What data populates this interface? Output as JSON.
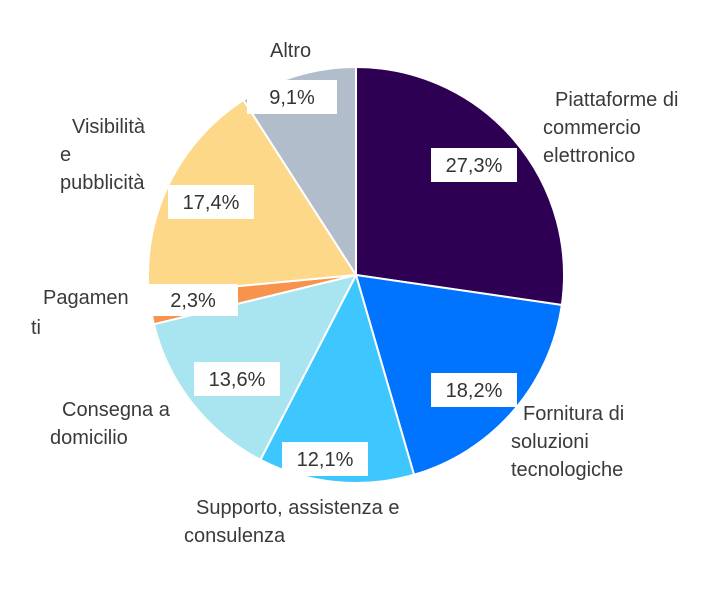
{
  "chart_data": {
    "type": "pie",
    "start_angle_deg": 0,
    "direction": "clockwise",
    "slices": [
      {
        "label": "Piattaforme di commercio elettronico",
        "label_lines": [
          "Piattaforme di",
          "commercio",
          "elettronico"
        ],
        "value": 27.3,
        "value_label": "27,3%",
        "color": "#2d0054"
      },
      {
        "label": "Fornitura di soluzioni tecnologiche",
        "label_lines": [
          "Fornitura di",
          "soluzioni",
          "tecnologiche"
        ],
        "value": 18.2,
        "value_label": "18,2%",
        "color": "#0074ff"
      },
      {
        "label": "Supporto, assistenza e consulenza",
        "label_lines": [
          "Supporto, assistenza e",
          "consulenza"
        ],
        "value": 12.1,
        "value_label": "12,1%",
        "color": "#3ec6ff"
      },
      {
        "label": "Consegna a domicilio",
        "label_lines": [
          "Consegna a",
          "domicilio"
        ],
        "value": 13.6,
        "value_label": "13,6%",
        "color": "#a9e5f1"
      },
      {
        "label": "Pagamenti",
        "label_lines": [
          "Pagamen",
          "ti"
        ],
        "value": 2.3,
        "value_label": "2,3%",
        "color": "#f7934c"
      },
      {
        "label": "Visibilità e pubblicità",
        "label_lines": [
          "Visibilità",
          "e",
          "pubblicità"
        ],
        "value": 17.4,
        "value_label": "17,4%",
        "color": "#fdd888"
      },
      {
        "label": "Altro",
        "label_lines": [
          "Altro"
        ],
        "value": 9.1,
        "value_label": "9,1%",
        "color": "#b2bdcc"
      }
    ]
  }
}
